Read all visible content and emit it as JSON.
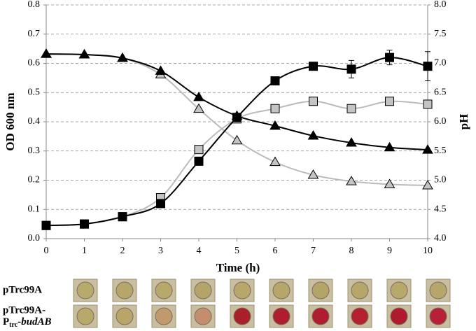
{
  "chart_data": {
    "type": "line",
    "xlabel": "Time (h)",
    "ylabel": "OD 600 nm",
    "y2label": "pH",
    "x": [
      0,
      1,
      2,
      3,
      4,
      5,
      6,
      7,
      8,
      9,
      10
    ],
    "xlim": [
      0,
      10
    ],
    "xticks": [
      0,
      1,
      2,
      3,
      4,
      5,
      6,
      7,
      8,
      9,
      10
    ],
    "ylim": [
      0,
      0.8
    ],
    "yticks": [
      {
        "value": 0,
        "label": "0.0"
      },
      0.1,
      0.2,
      0.3,
      0.4,
      0.5,
      0.6,
      0.7,
      0.8
    ],
    "y2lim": [
      4,
      8
    ],
    "y2ticks": [
      {
        "value": 4,
        "label": "4.0"
      },
      4.5,
      {
        "value": 5,
        "label": "5.0"
      },
      5.5,
      {
        "value": 6,
        "label": "6.0"
      },
      6.5,
      {
        "value": 7,
        "label": "7.0"
      },
      7.5,
      {
        "value": 8,
        "label": "8.0"
      }
    ],
    "grid": true,
    "series": [
      {
        "color": "#000000",
        "marker": "square",
        "fill": "#000000",
        "axis": "y",
        "values": [
          0.045,
          0.05,
          0.075,
          0.12,
          0.265,
          0.415,
          0.54,
          0.59,
          0.58,
          0.62,
          0.59
        ],
        "errors": [
          null,
          null,
          null,
          null,
          null,
          null,
          null,
          null,
          0.03,
          0.025,
          0.05
        ]
      },
      {
        "color": "#bbbbbb",
        "marker": "square",
        "fill": "#c4c4c4",
        "axis": "y",
        "values": [
          0.045,
          0.05,
          0.075,
          0.14,
          0.305,
          0.41,
          0.445,
          0.47,
          0.445,
          0.47,
          0.46
        ]
      },
      {
        "color": "#000000",
        "marker": "triangle",
        "fill": "#000000",
        "axis": "y2",
        "values": [
          7.16,
          7.15,
          7.09,
          6.87,
          6.42,
          6.1,
          5.93,
          5.76,
          5.64,
          5.56,
          5.52
        ]
      },
      {
        "color": "#bbbbbb",
        "marker": "triangle",
        "fill": "#c4c4c4",
        "axis": "y2",
        "values": [
          7.16,
          7.15,
          7.09,
          6.81,
          6.22,
          5.68,
          5.31,
          5.09,
          4.98,
          4.93,
          4.91
        ]
      }
    ],
    "wells": [
      {
        "label": [
          "pTrc99A"
        ],
        "colors": [
          "#b8a96c",
          "#b6a66a",
          "#b8a86c",
          "#b4a46a",
          "#b8a66c",
          "#b6a66a",
          "#b4a46a",
          "#b6a66a",
          "#b8a86c",
          "#b6a66c"
        ]
      },
      {
        "label": [
          "pTrc99A-",
          "P",
          "trc",
          "-budAB"
        ],
        "colors": [
          "#b8a86a",
          "#b9a46a",
          "#c09a6c",
          "#c48e6e",
          "#a8202a",
          "#ae1e30",
          "#b01c30",
          "#b42030",
          "#b01a2e",
          "#b8203a"
        ]
      }
    ]
  }
}
